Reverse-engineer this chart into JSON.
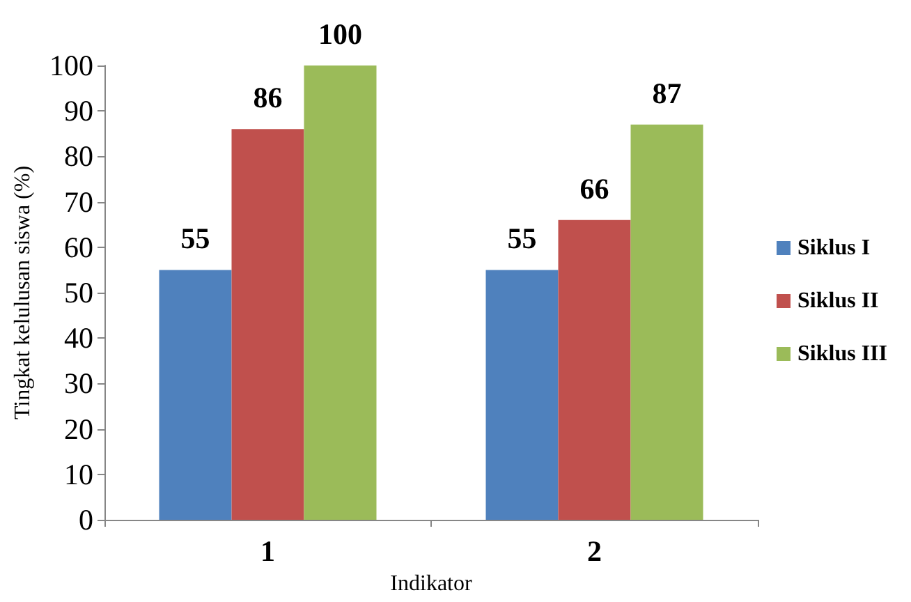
{
  "chart_data": {
    "type": "bar",
    "xlabel": "Indikator",
    "ylabel": "Tingkat kelulusan siswa (%)",
    "categories": [
      "1",
      "2"
    ],
    "series": [
      {
        "name": "Siklus I",
        "color": "#4f81bd",
        "values": [
          55,
          55
        ]
      },
      {
        "name": "Siklus II",
        "color": "#c0504d",
        "values": [
          86,
          66
        ]
      },
      {
        "name": "Siklus III",
        "color": "#9bbb59",
        "values": [
          100,
          87
        ]
      }
    ],
    "ylim": [
      0,
      100
    ],
    "yticks": [
      0,
      10,
      20,
      30,
      40,
      50,
      60,
      70,
      80,
      90,
      100
    ],
    "grid": false,
    "legend": "right",
    "data_labels": true
  }
}
